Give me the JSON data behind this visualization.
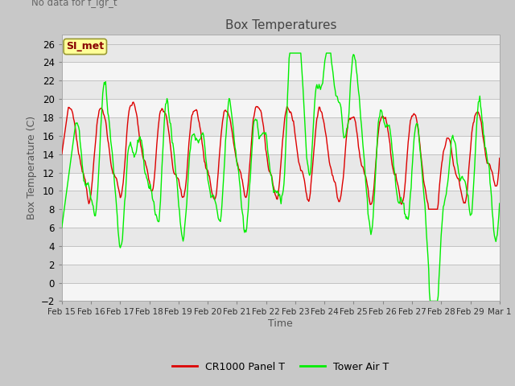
{
  "title": "Box Temperatures",
  "xlabel": "Time",
  "ylabel": "Box Temperature (C)",
  "annotation": "No data for f_lgr_t",
  "legend_label": "SI_met",
  "series1_label": "CR1000 Panel T",
  "series2_label": "Tower Air T",
  "series1_color": "#dd0000",
  "series2_color": "#00ee00",
  "ylim": [
    -2,
    27
  ],
  "yticks": [
    -2,
    0,
    2,
    4,
    6,
    8,
    10,
    12,
    14,
    16,
    18,
    20,
    22,
    24,
    26
  ],
  "bg_color": "#c8c8c8",
  "plot_bg_color": "#e8e8e8",
  "band_color_even": "#e8e8e8",
  "band_color_odd": "#f5f5f5",
  "grid_color": "#d0d0d0"
}
